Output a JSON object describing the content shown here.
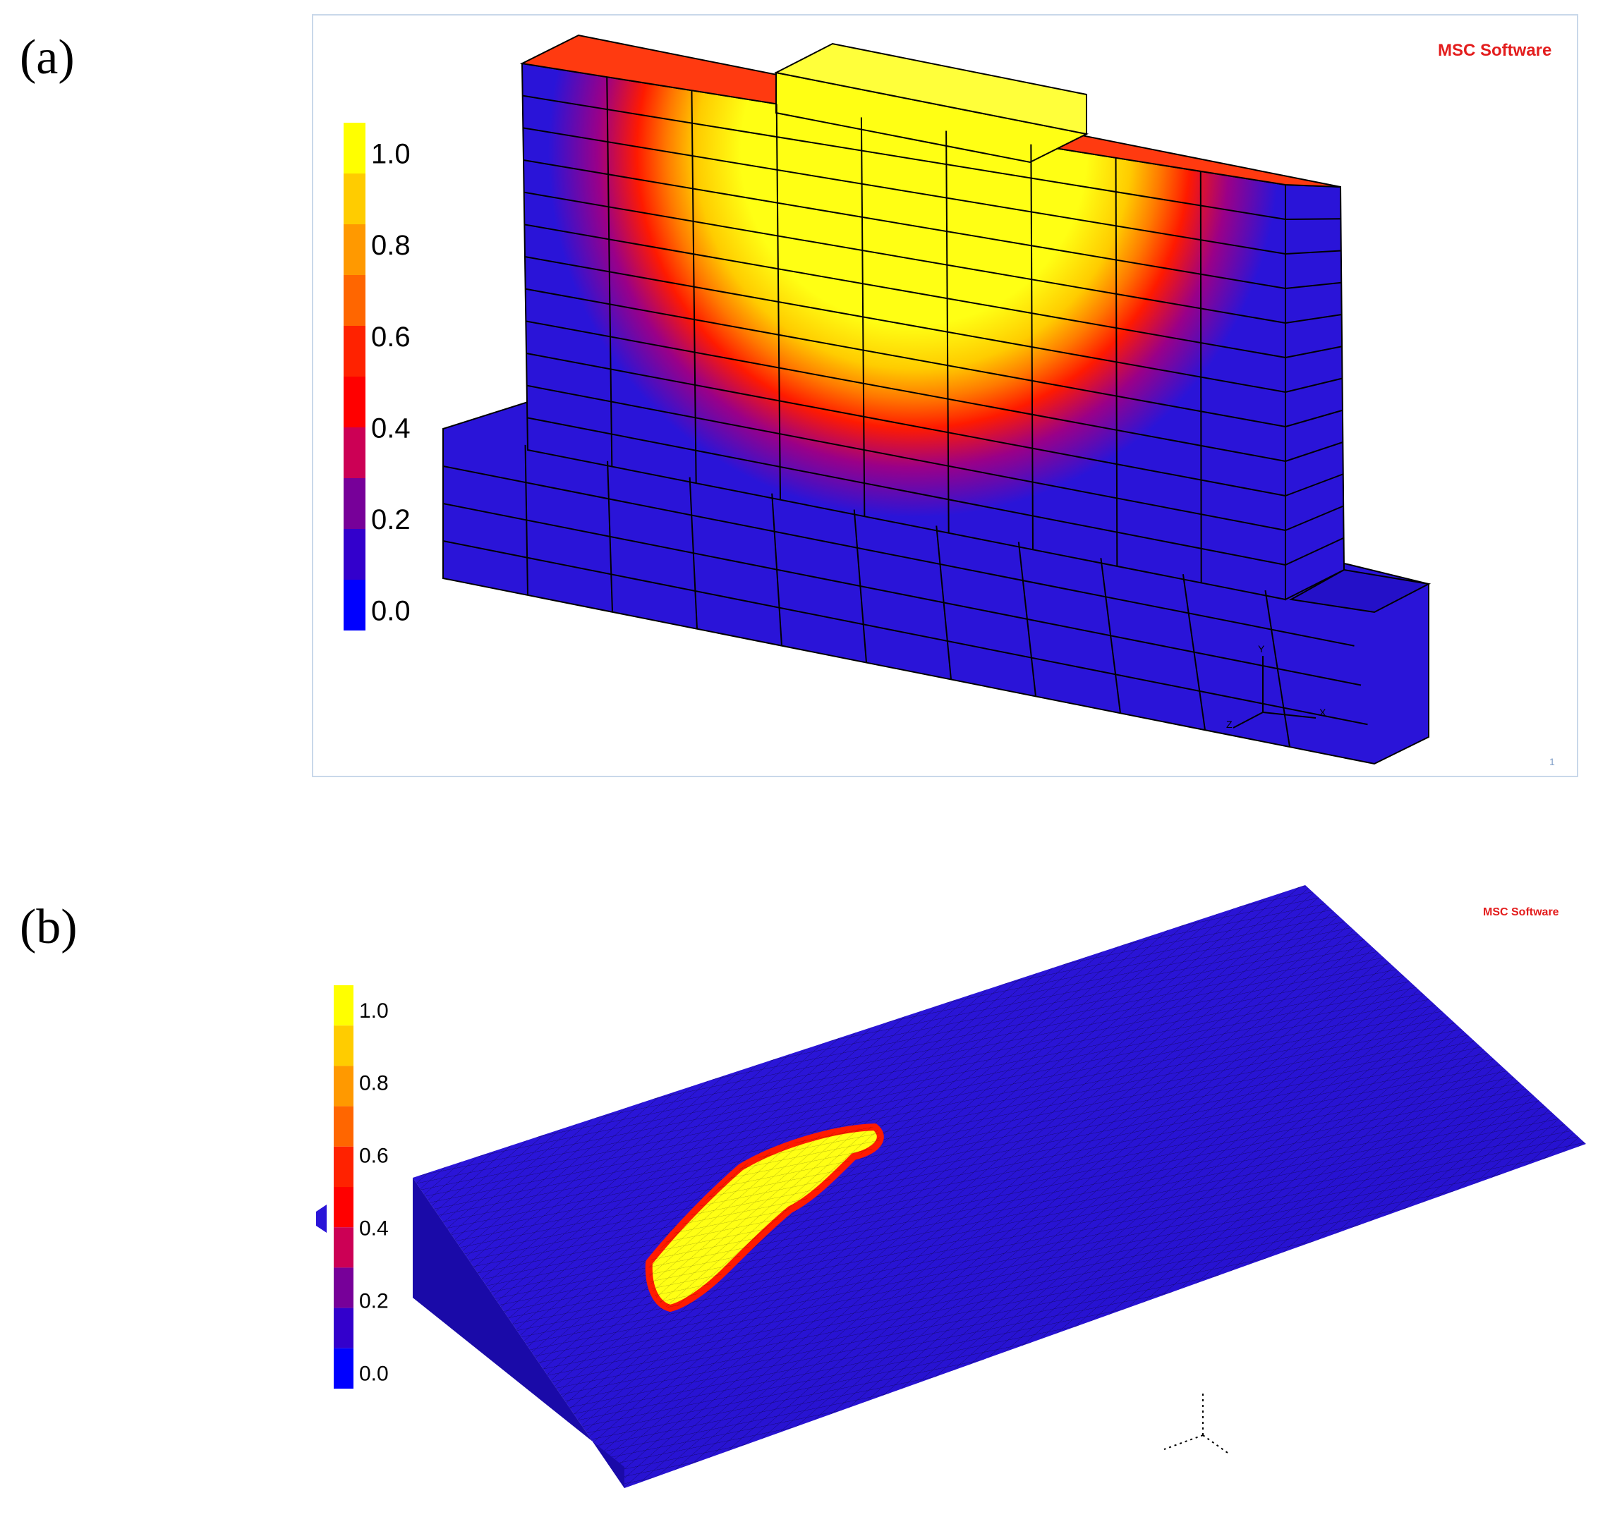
{
  "panels": [
    {
      "label": "(a)",
      "logo": "MSC Software",
      "page_number": "1",
      "axis_labels": [
        "Y",
        "X",
        "Z"
      ],
      "colorbar": {
        "ticks": [
          "1.0",
          "0.8",
          "0.6",
          "0.4",
          "0.2",
          "0.0"
        ],
        "colors": [
          "#ffff00",
          "#ffcc00",
          "#ff9900",
          "#ff6600",
          "#ff2200",
          "#ff0000",
          "#cc0055",
          "#770099",
          "#3300cc",
          "#0000ff"
        ]
      }
    },
    {
      "label": "(b)",
      "logo": "MSC Software",
      "colorbar": {
        "ticks": [
          "1.0",
          "0.8",
          "0.6",
          "0.4",
          "0.2",
          "0.0"
        ],
        "colors": [
          "#ffff00",
          "#ffcc00",
          "#ff9900",
          "#ff6600",
          "#ff2200",
          "#ff0000",
          "#cc0055",
          "#770099",
          "#3300cc",
          "#0000ff"
        ]
      }
    }
  ],
  "colors": {
    "mesh_blue": "#2a14d8",
    "hot_yellow": "#ffff14",
    "hot_red": "#ff1a00",
    "edge": "#000000"
  }
}
